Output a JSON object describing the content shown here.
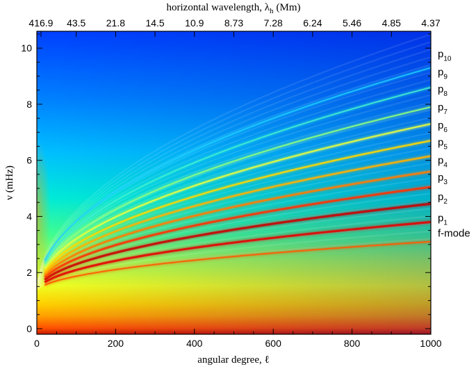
{
  "chart_data": {
    "type": "heatmap",
    "title": "",
    "xlabel": "angular degree, ℓ",
    "ylabel": "ν (mHz)",
    "top_xlabel": "horizontal wavelength, λ",
    "top_xlabel_sub": "h",
    "top_xlabel_unit": "(Mm)",
    "xlim": [
      0,
      1000
    ],
    "ylim": [
      -0.2,
      10.6
    ],
    "xticks": [
      0,
      200,
      400,
      600,
      800,
      1000
    ],
    "xtick_labels": [
      "0",
      "200",
      "400",
      "600",
      "800",
      "1000"
    ],
    "yticks": [
      0,
      2,
      4,
      6,
      8,
      10
    ],
    "ytick_labels": [
      "0",
      "2",
      "4",
      "6",
      "8",
      "10"
    ],
    "top_ticks": [
      10.5,
      100,
      200,
      300,
      400,
      500,
      600,
      700,
      800,
      900,
      1000
    ],
    "top_tick_labels": [
      "416.9",
      "43.5",
      "21.8",
      "14.5",
      "10.9",
      "8.73",
      "7.28",
      "6.24",
      "5.46",
      "4.85",
      "4.37"
    ],
    "colormap": [
      "#0033ff",
      "#0096ff",
      "#00e6ff",
      "#40ff80",
      "#c8ff30",
      "#ffff00",
      "#ffa000",
      "#ff3c00",
      "#c80000"
    ],
    "ridges": [
      {
        "name": "f-mode",
        "label": "f-mode",
        "sub": "",
        "nu_at_1000": 3.1
      },
      {
        "name": "p1",
        "label": "p",
        "sub": "1",
        "nu_at_1000": 3.8
      },
      {
        "name": "p2",
        "label": "p",
        "sub": "2",
        "nu_at_1000": 4.45
      },
      {
        "name": "p3",
        "label": "p",
        "sub": "3",
        "nu_at_1000": 5.05
      },
      {
        "name": "p4",
        "label": "p",
        "sub": "4",
        "nu_at_1000": 5.6
      },
      {
        "name": "p5",
        "label": "p",
        "sub": "5",
        "nu_at_1000": 6.15
      },
      {
        "name": "p6",
        "label": "p",
        "sub": "6",
        "nu_at_1000": 6.7
      },
      {
        "name": "p7",
        "label": "p",
        "sub": "7",
        "nu_at_1000": 7.3
      },
      {
        "name": "p8",
        "label": "p",
        "sub": "8",
        "nu_at_1000": 7.9
      },
      {
        "name": "p9",
        "label": "p",
        "sub": "9",
        "nu_at_1000": 8.6
      },
      {
        "name": "p10",
        "label": "p",
        "sub": "10",
        "nu_at_1000": 9.3
      }
    ],
    "mode_label_nu": [
      3.4,
      3.95,
      4.7,
      5.4,
      6.0,
      6.65,
      7.25,
      7.9,
      8.55,
      9.15,
      9.8
    ]
  }
}
